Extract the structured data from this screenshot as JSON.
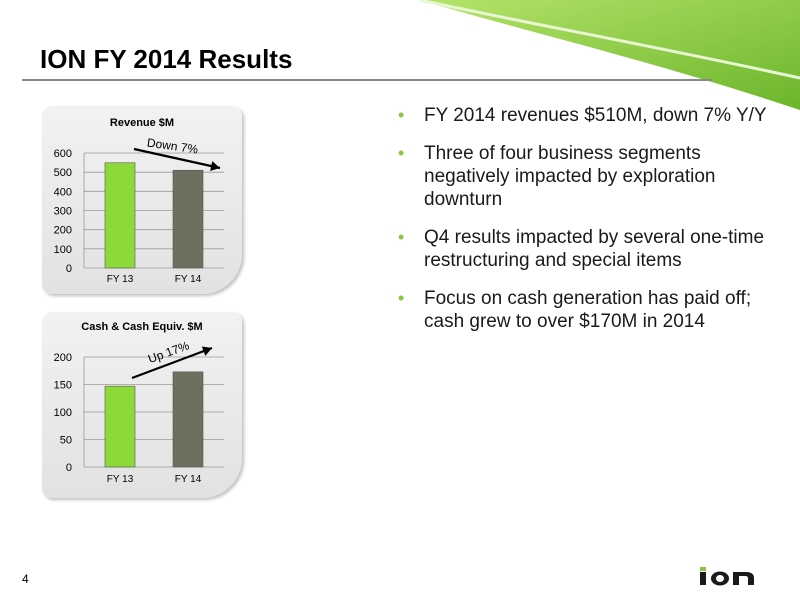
{
  "slide": {
    "title": "ION FY 2014 Results",
    "page_number": "4",
    "accent_color": "#8cc63f",
    "bullets": [
      "FY 2014 revenues $510M, down 7% Y/Y",
      "Three of four business segments negatively impacted by exploration downturn",
      "Q4 results impacted by several one-time restructuring and special items",
      "Focus on cash generation has paid off; cash grew to over $170M in 2014"
    ]
  },
  "chart_data": [
    {
      "type": "bar",
      "title": "Revenue $M",
      "categories": [
        "FY 13",
        "FY 14"
      ],
      "values": [
        549,
        510
      ],
      "ylim": [
        0,
        600
      ],
      "yticks": [
        0,
        100,
        200,
        300,
        400,
        500,
        600
      ],
      "bar_colors": [
        "#8cd93a",
        "#6e6f5e"
      ],
      "grid": true,
      "annotation": "Down 7%"
    },
    {
      "type": "bar",
      "title": "Cash & Cash Equiv. $M",
      "categories": [
        "FY 13",
        "FY 14"
      ],
      "values": [
        147,
        173
      ],
      "ylim": [
        0,
        200
      ],
      "yticks": [
        0,
        50,
        100,
        150,
        200
      ],
      "bar_colors": [
        "#8cd93a",
        "#6e6f5e"
      ],
      "grid": true,
      "annotation": "Up 17%"
    }
  ]
}
